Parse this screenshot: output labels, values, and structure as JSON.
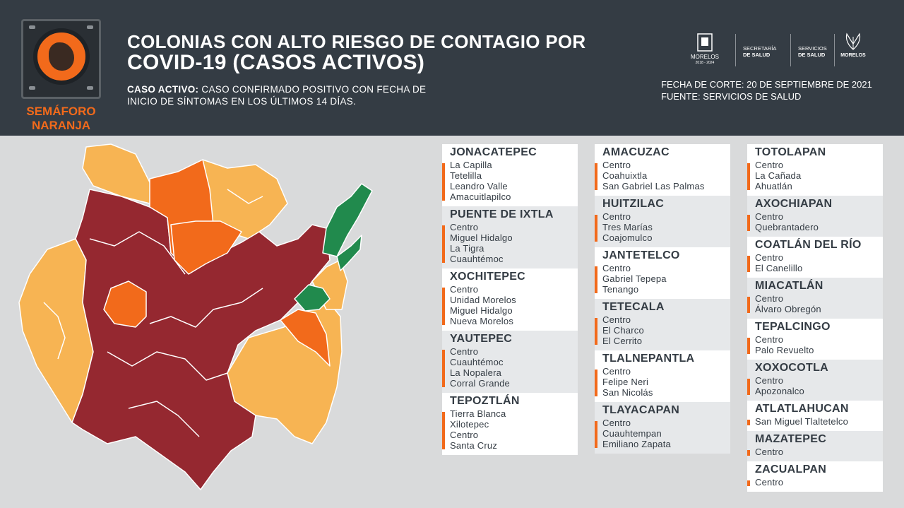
{
  "header": {
    "badge": "SEMÁFORO NARANJA",
    "badge_line1": "SEMÁFORO",
    "badge_line2": "NARANJA",
    "title_line1": "COLONIAS CON ALTO RIESGO DE CONTAGIO POR",
    "title_line2": "COVID-19 (CASOS ACTIVOS)",
    "definition_label": "CASO ACTIVO:",
    "definition_text_line1": "CASO CONFIRMADO POSITIVO CON FECHA DE",
    "definition_text_line2": "INICIO DE SÍNTOMAS EN LOS ÚLTIMOS 14 DÍAS.",
    "fecha_corte": "FECHA DE CORTE: 20 DE SEPTIEMBRE DE 2021",
    "fuente": "FUENTE: SERVICIOS DE SALUD",
    "logos": {
      "morelos": "MORELOS",
      "morelos_years": "2018 - 2024",
      "secretaria_line1": "SECRETARÍA",
      "secretaria_line2": "DE SALUD",
      "servicios_line1": "SERVICIOS",
      "servicios_line2": "DE SALUD",
      "morelos_right": "MORELOS"
    }
  },
  "colors": {
    "header_bg": "#343c44",
    "orange": "#f26a1b",
    "maroon": "#952830",
    "light_orange": "#f7b453",
    "green": "#218a4d"
  },
  "columns": [
    [
      {
        "name": "JONACATEPEC",
        "bg": "white",
        "colonias": [
          "La Capilla",
          "Tetelilla",
          "Leandro Valle",
          "Amacuitlapilco"
        ]
      },
      {
        "name": "PUENTE DE IXTLA",
        "bg": "grey",
        "colonias": [
          "Centro",
          "Miguel Hidalgo",
          "La Tigra",
          "Cuauhtémoc"
        ]
      },
      {
        "name": "XOCHITEPEC",
        "bg": "white",
        "colonias": [
          "Centro",
          "Unidad Morelos",
          "Miguel Hidalgo",
          "Nueva Morelos"
        ]
      },
      {
        "name": "YAUTEPEC",
        "bg": "grey",
        "colonias": [
          "Centro",
          "Cuauhtémoc",
          "La Nopalera",
          "Corral Grande"
        ]
      },
      {
        "name": "TEPOZTLÁN",
        "bg": "white",
        "colonias": [
          "Tierra Blanca",
          "Xilotepec",
          "Centro",
          "Santa Cruz"
        ]
      }
    ],
    [
      {
        "name": "AMACUZAC",
        "bg": "white",
        "colonias": [
          "Centro",
          "Coahuixtla",
          "San Gabriel Las Palmas"
        ]
      },
      {
        "name": "HUITZILAC",
        "bg": "grey",
        "colonias": [
          "Centro",
          "Tres Marías",
          "Coajomulco"
        ]
      },
      {
        "name": "JANTETELCO",
        "bg": "white",
        "colonias": [
          "Centro",
          "Gabriel Tepepa",
          "Tenango"
        ]
      },
      {
        "name": "TETECALA",
        "bg": "grey",
        "colonias": [
          "Centro",
          "El Charco",
          "El Cerrito"
        ]
      },
      {
        "name": "TLALNEPANTLA",
        "bg": "white",
        "colonias": [
          "Centro",
          "Felipe Neri",
          "San Nicolás"
        ]
      },
      {
        "name": "TLAYACAPAN",
        "bg": "grey",
        "colonias": [
          "Centro",
          "Cuauhtempan",
          "Emiliano Zapata"
        ]
      }
    ],
    [
      {
        "name": "TOTOLAPAN",
        "bg": "white",
        "colonias": [
          "Centro",
          "La Cañada",
          "Ahuatlán"
        ]
      },
      {
        "name": "AXOCHIAPAN",
        "bg": "grey",
        "colonias": [
          "Centro",
          "Quebrantadero"
        ]
      },
      {
        "name": "COATLÁN DEL RÍO",
        "bg": "white",
        "colonias": [
          "Centro",
          "El Canelillo"
        ]
      },
      {
        "name": "MIACATLÁN",
        "bg": "grey",
        "colonias": [
          "Centro",
          "Álvaro Obregón"
        ]
      },
      {
        "name": "TEPALCINGO",
        "bg": "white",
        "colonias": [
          "Centro",
          "Palo Revuelto"
        ]
      },
      {
        "name": "XOXOCOTLA",
        "bg": "grey",
        "colonias": [
          "Centro",
          "Apozonalco"
        ]
      },
      {
        "name": "ATLATLAHUCAN",
        "bg": "white",
        "colonias": [
          "San Miguel Tlaltetelco"
        ]
      },
      {
        "name": "MAZATEPEC",
        "bg": "grey",
        "colonias": [
          "Centro"
        ]
      },
      {
        "name": "ZACUALPAN",
        "bg": "white",
        "colonias": [
          "Centro"
        ]
      }
    ]
  ]
}
